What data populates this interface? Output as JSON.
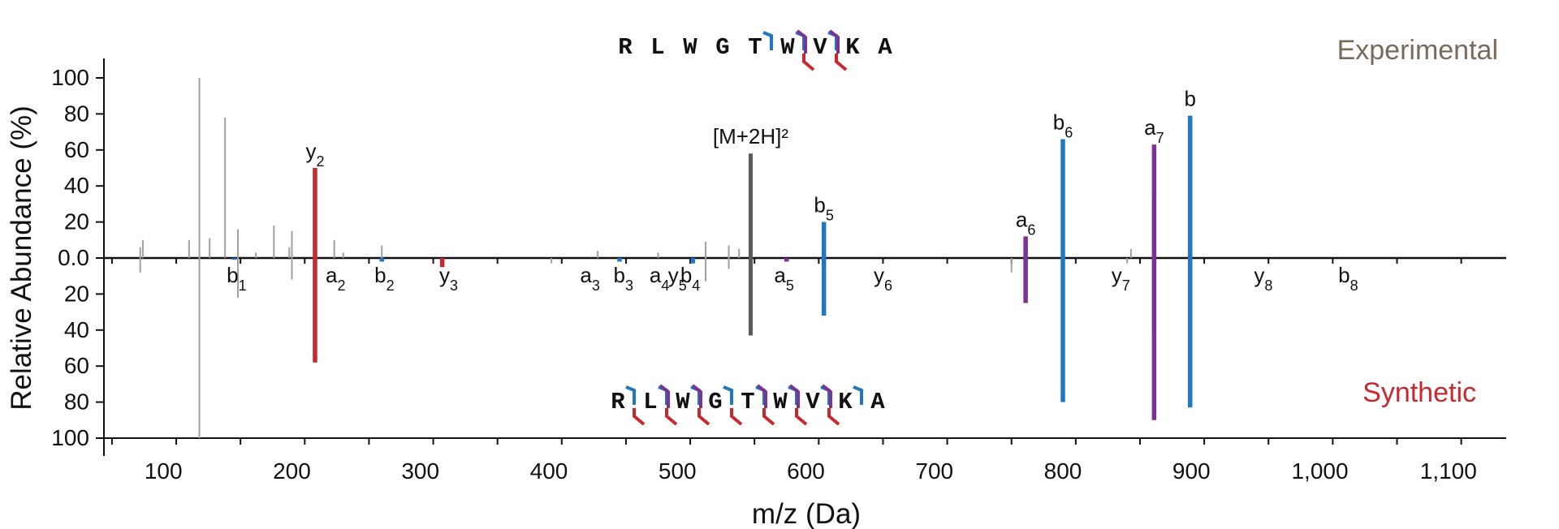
{
  "chart_data": {
    "type": "bar",
    "title": "",
    "xlabel": "m/z (Da)",
    "ylabel": "Relative Abundance (%)",
    "xlim": [
      55,
      1145
    ],
    "ylim_top": [
      0,
      100
    ],
    "ylim_bottom": [
      0,
      100
    ],
    "x_ticks": [
      100,
      200,
      300,
      400,
      500,
      600,
      700,
      800,
      900,
      1000,
      1100
    ],
    "x_tick_labels": [
      "100",
      "200",
      "300",
      "400",
      "500",
      "600",
      "700",
      "800",
      "900",
      "1,000",
      "1,100"
    ],
    "y_top_ticks": [
      "100",
      "80",
      "60",
      "40",
      "20",
      "0.0"
    ],
    "y_bottom_ticks": [
      "20",
      "40",
      "60",
      "80",
      "100"
    ],
    "legend": {
      "top": "Experimental",
      "bottom": "Synthetic",
      "placement": "right"
    },
    "colors": {
      "b": "#1f78c1",
      "y": "#c8282e",
      "a": "#7b3294",
      "precursor": "#5a5a5a",
      "noise": "#a0a0a0"
    },
    "sequence_experimental": [
      "R",
      "L",
      "W",
      "G",
      "T",
      "W",
      "V",
      "K",
      "A"
    ],
    "sequence_synthetic": [
      "R",
      "L",
      "W",
      "G",
      "T",
      "W",
      "V",
      "K",
      "A"
    ],
    "series": [
      {
        "name": "Experimental",
        "peaks": [
          {
            "mz": 218,
            "intensity": 50,
            "ion": "y",
            "label": "y",
            "sub": "2"
          },
          {
            "mz": 557,
            "intensity": 58,
            "ion": "precursor",
            "label": "[M+2H]²",
            "sub": ""
          },
          {
            "mz": 614,
            "intensity": 20,
            "ion": "b",
            "label": "b",
            "sub": "5"
          },
          {
            "mz": 771,
            "intensity": 12,
            "ion": "a",
            "label": "a",
            "sub": "6"
          },
          {
            "mz": 800,
            "intensity": 66,
            "ion": "b",
            "label": "b",
            "sub": "6"
          },
          {
            "mz": 871,
            "intensity": 63,
            "ion": "a",
            "label": "a",
            "sub": "7"
          },
          {
            "mz": 899,
            "intensity": 79,
            "ion": "b",
            "label": "b",
            "sub": ""
          },
          {
            "mz": 128,
            "intensity": 100,
            "ion": "noise"
          },
          {
            "mz": 148,
            "intensity": 78,
            "ion": "noise"
          },
          {
            "mz": 158,
            "intensity": 16,
            "ion": "noise"
          },
          {
            "mz": 186,
            "intensity": 18,
            "ion": "noise"
          },
          {
            "mz": 200,
            "intensity": 15,
            "ion": "noise"
          },
          {
            "mz": 120,
            "intensity": 10,
            "ion": "noise"
          },
          {
            "mz": 136,
            "intensity": 11,
            "ion": "noise"
          },
          {
            "mz": 84,
            "intensity": 10,
            "ion": "noise"
          },
          {
            "mz": 82,
            "intensity": 6,
            "ion": "noise"
          },
          {
            "mz": 198,
            "intensity": 6,
            "ion": "noise"
          },
          {
            "mz": 233,
            "intensity": 10,
            "ion": "noise"
          },
          {
            "mz": 270,
            "intensity": 7,
            "ion": "noise"
          },
          {
            "mz": 240,
            "intensity": 3,
            "ion": "noise"
          },
          {
            "mz": 172,
            "intensity": 3,
            "ion": "noise"
          },
          {
            "mz": 438,
            "intensity": 4,
            "ion": "noise"
          },
          {
            "mz": 485,
            "intensity": 3,
            "ion": "noise"
          },
          {
            "mz": 522,
            "intensity": 9,
            "ion": "noise"
          },
          {
            "mz": 540,
            "intensity": 7,
            "ion": "noise"
          },
          {
            "mz": 548,
            "intensity": 5,
            "ion": "noise"
          },
          {
            "mz": 853,
            "intensity": 5,
            "ion": "noise"
          },
          {
            "mz": 898,
            "intensity": 42,
            "ion": "noise"
          },
          {
            "mz": 800,
            "intensity": 27,
            "ion": "noise"
          },
          {
            "mz": 870,
            "intensity": 32,
            "ion": "noise"
          }
        ]
      },
      {
        "name": "Synthetic",
        "peaks": [
          {
            "mz": 218,
            "intensity": 58,
            "ion": "y",
            "label": "y",
            "sub": "2"
          },
          {
            "mz": 317,
            "intensity": 5,
            "ion": "y",
            "label": "y",
            "sub": "3"
          },
          {
            "mz": 557,
            "intensity": 43,
            "ion": "precursor"
          },
          {
            "mz": 614,
            "intensity": 32,
            "ion": "b"
          },
          {
            "mz": 771,
            "intensity": 25,
            "ion": "a"
          },
          {
            "mz": 800,
            "intensity": 80,
            "ion": "b"
          },
          {
            "mz": 871,
            "intensity": 90,
            "ion": "a"
          },
          {
            "mz": 899,
            "intensity": 83,
            "ion": "b"
          },
          {
            "mz": 270,
            "intensity": 2,
            "ion": "b",
            "label": "b",
            "sub": "2"
          },
          {
            "mz": 455,
            "intensity": 2,
            "ion": "b",
            "label": "b",
            "sub": "3"
          },
          {
            "mz": 512,
            "intensity": 3,
            "ion": "b",
            "label": "b",
            "sub": "4"
          },
          {
            "mz": 585,
            "intensity": 2,
            "ion": "a",
            "label": "a",
            "sub": "5"
          },
          {
            "mz": 155,
            "intensity": 1,
            "ion": "b",
            "label": "b",
            "sub": "1"
          },
          {
            "mz": 128,
            "intensity": 100,
            "ion": "noise"
          },
          {
            "mz": 158,
            "intensity": 22,
            "ion": "noise"
          },
          {
            "mz": 200,
            "intensity": 12,
            "ion": "noise"
          },
          {
            "mz": 82,
            "intensity": 8,
            "ion": "noise"
          },
          {
            "mz": 522,
            "intensity": 13,
            "ion": "noise"
          },
          {
            "mz": 540,
            "intensity": 6,
            "ion": "noise"
          },
          {
            "mz": 760,
            "intensity": 8,
            "ion": "noise"
          },
          {
            "mz": 800,
            "intensity": 33,
            "ion": "noise"
          },
          {
            "mz": 870,
            "intensity": 42,
            "ion": "noise"
          },
          {
            "mz": 898,
            "intensity": 40,
            "ion": "noise"
          },
          {
            "mz": 850,
            "intensity": 3,
            "ion": "noise"
          },
          {
            "mz": 402,
            "intensity": 3,
            "ion": "noise"
          }
        ]
      }
    ],
    "unmatched_labels": [
      {
        "mz": 157,
        "label": "b",
        "sub": "1"
      },
      {
        "mz": 234,
        "label": "a",
        "sub": "2"
      },
      {
        "mz": 272,
        "label": "b",
        "sub": "2"
      },
      {
        "mz": 322,
        "label": "y",
        "sub": "3"
      },
      {
        "mz": 432,
        "label": "a",
        "sub": "3"
      },
      {
        "mz": 458,
        "label": "b",
        "sub": "3"
      },
      {
        "mz": 486,
        "label": "a",
        "sub": "4"
      },
      {
        "mz": 500,
        "label": "y",
        "sub": "5"
      },
      {
        "mz": 510,
        "label": "b",
        "sub": "4"
      },
      {
        "mz": 583,
        "label": "a",
        "sub": "5"
      },
      {
        "mz": 660,
        "label": "y",
        "sub": "6"
      },
      {
        "mz": 845,
        "label": "y",
        "sub": "7"
      },
      {
        "mz": 956,
        "label": "y",
        "sub": "8"
      },
      {
        "mz": 1022,
        "label": "b",
        "sub": "8"
      }
    ]
  }
}
